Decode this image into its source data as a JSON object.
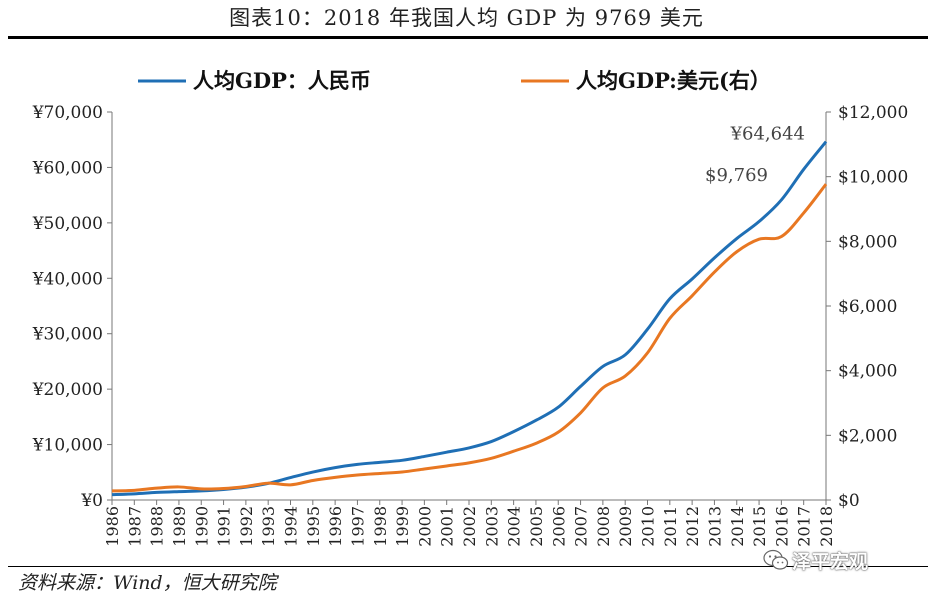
{
  "title": "图表10：2018 年我国人均 GDP 为 9769 美元",
  "source": "资料来源：Wind，恒大研究院",
  "watermark": "泽平宏观",
  "chart_data": {
    "type": "line",
    "title": "图表10：2018 年我国人均 GDP 为 9769 美元",
    "categories": [
      "1986",
      "1987",
      "1988",
      "1989",
      "1990",
      "1991",
      "1992",
      "1993",
      "1994",
      "1995",
      "1996",
      "1997",
      "1998",
      "1999",
      "2000",
      "2001",
      "2002",
      "2003",
      "2004",
      "2005",
      "2006",
      "2007",
      "2008",
      "2009",
      "2010",
      "2011",
      "2012",
      "2013",
      "2014",
      "2015",
      "2016",
      "2017",
      "2018"
    ],
    "series": [
      {
        "name": "人均GDP：人民币",
        "axis": "left",
        "color": "#1f6fb5",
        "values": [
          963,
          1112,
          1366,
          1519,
          1644,
          1893,
          2311,
          2998,
          4044,
          5046,
          5846,
          6420,
          6796,
          7159,
          7858,
          8622,
          9398,
          10542,
          12336,
          14368,
          16738,
          20494,
          24100,
          26180,
          30808,
          36302,
          39874,
          43684,
          47173,
          50237,
          54139,
          59660,
          64644
        ]
      },
      {
        "name": "人均GDP:美元(右）",
        "axis": "right",
        "color": "#e87722",
        "values": [
          282,
          299,
          367,
          404,
          344,
          356,
          419,
          520,
          469,
          604,
          700,
          774,
          821,
          865,
          959,
          1053,
          1149,
          1289,
          1509,
          1753,
          2099,
          2694,
          3468,
          3832,
          4550,
          5618,
          6316,
          7050,
          7678,
          8066,
          8147,
          8879,
          9769
        ]
      }
    ],
    "left_axis": {
      "ticks": [
        "¥0",
        "¥10,000",
        "¥20,000",
        "¥30,000",
        "¥40,000",
        "¥50,000",
        "¥60,000",
        "¥70,000"
      ],
      "range": [
        0,
        70000
      ],
      "step": 10000
    },
    "right_axis": {
      "ticks": [
        "$0",
        "$2,000",
        "$4,000",
        "$6,000",
        "$8,000",
        "$10,000",
        "$12,000"
      ],
      "range": [
        0,
        12000
      ],
      "step": 2000
    },
    "annotations": [
      {
        "text": "¥64,644",
        "series": 0,
        "index": 32
      },
      {
        "text": "$9,769",
        "series": 1,
        "index": 32
      }
    ],
    "legend_position": "top"
  }
}
